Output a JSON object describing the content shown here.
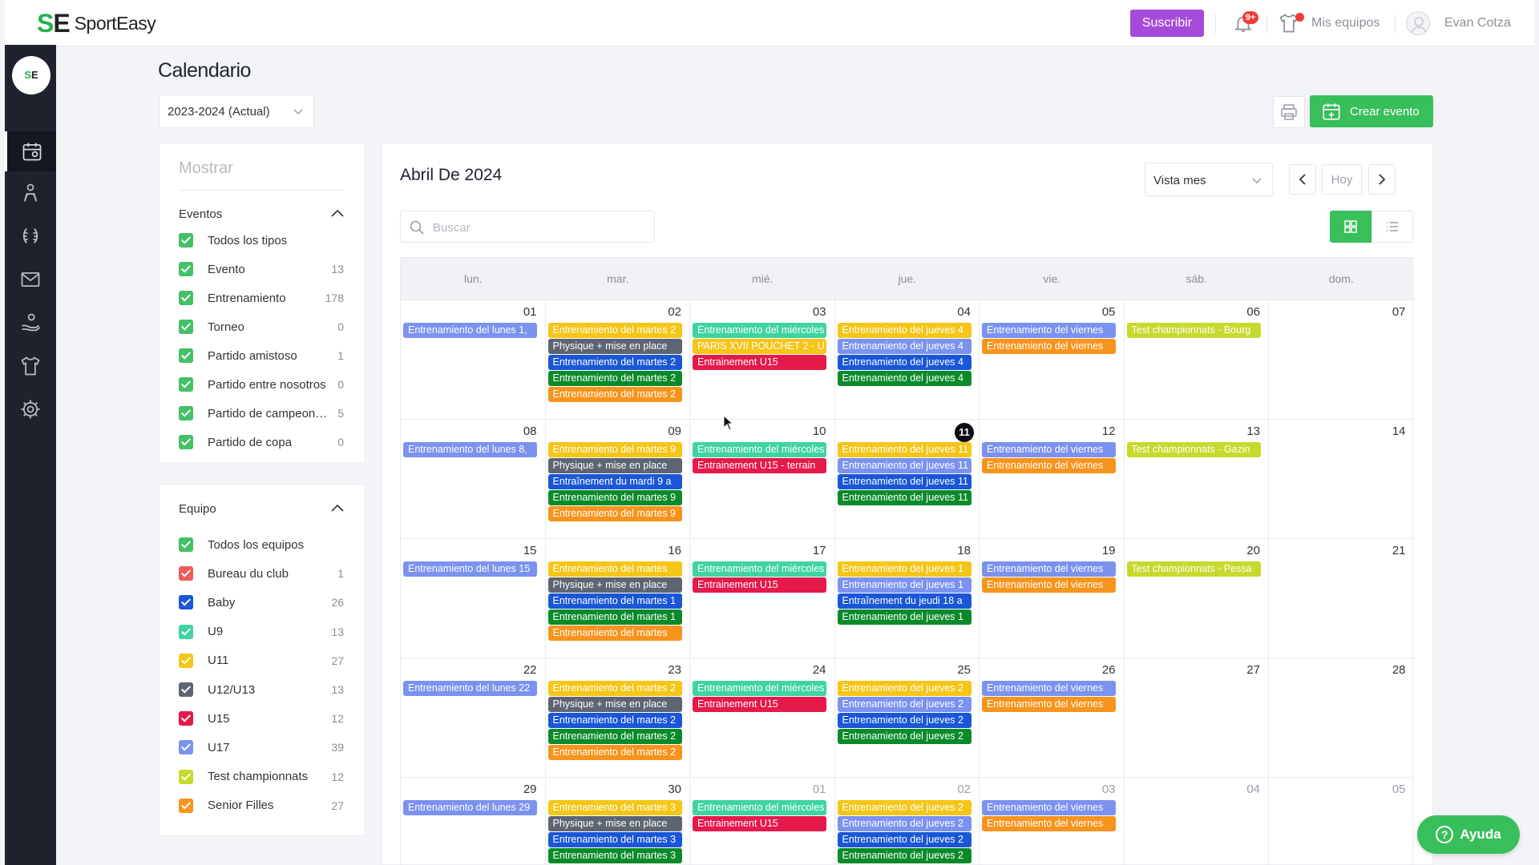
{
  "app": {
    "logo_mark": "SE",
    "name": "SportEasy"
  },
  "topbar": {
    "subscribe": "Suscribir",
    "notif_badge": "9+",
    "my_teams": "Mis equipos",
    "user_name": "Evan Cotza",
    "icons": [
      "bell-icon",
      "shirt-icon",
      "user-avatar-icon"
    ]
  },
  "sidebar": {
    "club_logo": "SE",
    "items": [
      {
        "name": "calendar",
        "icon": "calendar-icon",
        "active": true
      },
      {
        "name": "members",
        "icon": "people-icon",
        "active": false
      },
      {
        "name": "stats",
        "icon": "laurel-icon",
        "active": false
      },
      {
        "name": "messages",
        "icon": "mail-icon",
        "active": false
      },
      {
        "name": "payments",
        "icon": "hand-coin-icon",
        "active": false
      },
      {
        "name": "teams",
        "icon": "shirt-icon",
        "active": false
      },
      {
        "name": "settings",
        "icon": "gear-icon",
        "active": false
      }
    ]
  },
  "header": {
    "title": "Calendario",
    "season": "2023-2024 (Actual)",
    "create_event": "Crear evento"
  },
  "filters": {
    "show_label": "Mostrar",
    "events_title": "Eventos",
    "events": [
      {
        "label": "Todos los tipos",
        "count": "",
        "color": "#44c067"
      },
      {
        "label": "Evento",
        "count": "13",
        "color": "#44c067"
      },
      {
        "label": "Entrenamiento",
        "count": "178",
        "color": "#44c067"
      },
      {
        "label": "Torneo",
        "count": "0",
        "color": "#44c067"
      },
      {
        "label": "Partido amistoso",
        "count": "1",
        "color": "#44c067"
      },
      {
        "label": "Partido entre nosotros",
        "count": "0",
        "color": "#44c067"
      },
      {
        "label": "Partido de campeona...",
        "count": "5",
        "color": "#44c067"
      },
      {
        "label": "Partido de copa",
        "count": "0",
        "color": "#44c067"
      }
    ],
    "team_title": "Equipo",
    "teams": [
      {
        "label": "Todos los equipos",
        "count": "",
        "color": "#44c067"
      },
      {
        "label": "Bureau du club",
        "count": "1",
        "color": "#ef5a5a"
      },
      {
        "label": "Baby",
        "count": "26",
        "color": "#1a56d6"
      },
      {
        "label": "U9",
        "count": "13",
        "color": "#3fd4a0"
      },
      {
        "label": "U11",
        "count": "27",
        "color": "#f5c518"
      },
      {
        "label": "U12/U13",
        "count": "13",
        "color": "#5e6572"
      },
      {
        "label": "U15",
        "count": "12",
        "color": "#e5194a"
      },
      {
        "label": "U17",
        "count": "39",
        "color": "#7b92ef"
      },
      {
        "label": "Test championnats",
        "count": "12",
        "color": "#c7d92c"
      },
      {
        "label": "Senior Filles",
        "count": "27",
        "color": "#f7941d"
      }
    ]
  },
  "calendar": {
    "month_title": "Abril De 2024",
    "view": "Vista mes",
    "today_btn": "Hoy",
    "search_placeholder": "Buscar",
    "weekdays": [
      "lun.",
      "mar.",
      "mié.",
      "jue.",
      "vie.",
      "sáb.",
      "dom."
    ],
    "colors": {
      "periwinkle": "#7b92ef",
      "yellow": "#f5c518",
      "gray": "#5e6572",
      "blue": "#1a56d6",
      "green": "#0b8a2a",
      "orange": "#f7941d",
      "teal": "#3fd4a0",
      "red": "#e5194a",
      "lime": "#c7d92c"
    },
    "weeks": [
      [
        {
          "day": "01",
          "events": [
            {
              "label": "Entrenamiento del lunes 1,",
              "color": "periwinkle"
            }
          ]
        },
        {
          "day": "02",
          "events": [
            {
              "label": "Entrenamiento del martes 2",
              "color": "yellow"
            },
            {
              "label": "Physique + mise en place",
              "color": "gray"
            },
            {
              "label": "Entrenamiento del martes 2",
              "color": "blue"
            },
            {
              "label": "Entrenamiento del martes 2",
              "color": "green"
            },
            {
              "label": "Entrenamiento del martes 2",
              "color": "orange"
            }
          ]
        },
        {
          "day": "03",
          "events": [
            {
              "label": "Entrenamiento del miércoles",
              "color": "teal"
            },
            {
              "label": "PARIS XVII POUCHET 2 - U",
              "color": "yellow"
            },
            {
              "label": "Entrainement U15",
              "color": "red"
            }
          ]
        },
        {
          "day": "04",
          "events": [
            {
              "label": "Entrenamiento del jueves 4",
              "color": "yellow"
            },
            {
              "label": "Entrenamiento del jueves 4",
              "color": "periwinkle"
            },
            {
              "label": "Entrenamiento del jueves 4",
              "color": "blue"
            },
            {
              "label": "Entrenamiento del jueves 4",
              "color": "green"
            }
          ]
        },
        {
          "day": "05",
          "events": [
            {
              "label": "Entrenamiento del viernes",
              "color": "periwinkle"
            },
            {
              "label": "Entrenamiento del viernes",
              "color": "orange"
            }
          ]
        },
        {
          "day": "06",
          "events": [
            {
              "label": "Test championnats - Bourg",
              "color": "lime"
            }
          ]
        },
        {
          "day": "07",
          "events": []
        }
      ],
      [
        {
          "day": "08",
          "events": [
            {
              "label": "Entrenamiento del lunes 8,",
              "color": "periwinkle"
            }
          ]
        },
        {
          "day": "09",
          "events": [
            {
              "label": "Entrenamiento del martes 9",
              "color": "yellow"
            },
            {
              "label": "Physique + mise en place",
              "color": "gray"
            },
            {
              "label": "Entraînement du mardi 9 a",
              "color": "blue"
            },
            {
              "label": "Entrenamiento del martes 9",
              "color": "green"
            },
            {
              "label": "Entrenamiento del martes 9",
              "color": "orange"
            }
          ]
        },
        {
          "day": "10",
          "events": [
            {
              "label": "Entrenamiento del miércoles",
              "color": "teal"
            },
            {
              "label": "Entrainement U15 - terrain",
              "color": "red"
            }
          ]
        },
        {
          "day": "11",
          "today": true,
          "events": [
            {
              "label": "Entrenamiento del jueves 11",
              "color": "yellow"
            },
            {
              "label": "Entrenamiento del jueves 11",
              "color": "periwinkle"
            },
            {
              "label": "Entrenamiento del jueves 11",
              "color": "blue"
            },
            {
              "label": "Entrenamiento del jueves 11",
              "color": "green"
            }
          ]
        },
        {
          "day": "12",
          "events": [
            {
              "label": "Entrenamiento del viernes",
              "color": "periwinkle"
            },
            {
              "label": "Entrenamiento del viernes",
              "color": "orange"
            }
          ]
        },
        {
          "day": "13",
          "events": [
            {
              "label": "Test championnats - Gazin",
              "color": "lime"
            }
          ]
        },
        {
          "day": "14",
          "events": []
        }
      ],
      [
        {
          "day": "15",
          "events": [
            {
              "label": "Entrenamiento del lunes 15",
              "color": "periwinkle"
            }
          ]
        },
        {
          "day": "16",
          "events": [
            {
              "label": "Entrenamiento del martes",
              "color": "yellow"
            },
            {
              "label": "Physique + mise en place",
              "color": "gray"
            },
            {
              "label": "Entrenamiento del martes 1",
              "color": "blue"
            },
            {
              "label": "Entrenamiento del martes 1",
              "color": "green"
            },
            {
              "label": "Entrenamiento del martes",
              "color": "orange"
            }
          ]
        },
        {
          "day": "17",
          "events": [
            {
              "label": "Entrenamiento del miércoles",
              "color": "teal"
            },
            {
              "label": "Entrainement U15",
              "color": "red"
            }
          ]
        },
        {
          "day": "18",
          "events": [
            {
              "label": "Entrenamiento del jueves 1",
              "color": "yellow"
            },
            {
              "label": "Entrenamiento del jueves 1",
              "color": "periwinkle"
            },
            {
              "label": "Entraînement du jeudi 18 a",
              "color": "blue"
            },
            {
              "label": "Entrenamiento del jueves 1",
              "color": "green"
            }
          ]
        },
        {
          "day": "19",
          "events": [
            {
              "label": "Entrenamiento del viernes",
              "color": "periwinkle"
            },
            {
              "label": "Entrenamiento del viernes",
              "color": "orange"
            }
          ]
        },
        {
          "day": "20",
          "events": [
            {
              "label": "Test championnats - Pessa",
              "color": "lime"
            }
          ]
        },
        {
          "day": "21",
          "events": []
        }
      ],
      [
        {
          "day": "22",
          "events": [
            {
              "label": "Entrenamiento del lunes 22",
              "color": "periwinkle"
            }
          ]
        },
        {
          "day": "23",
          "events": [
            {
              "label": "Entrenamiento del martes 2",
              "color": "yellow"
            },
            {
              "label": "Physique + mise en place",
              "color": "gray"
            },
            {
              "label": "Entrenamiento del martes 2",
              "color": "blue"
            },
            {
              "label": "Entrenamiento del martes 2",
              "color": "green"
            },
            {
              "label": "Entrenamiento del martes 2",
              "color": "orange"
            }
          ]
        },
        {
          "day": "24",
          "events": [
            {
              "label": "Entrenamiento del miércoles",
              "color": "teal"
            },
            {
              "label": "Entrainement U15",
              "color": "red"
            }
          ]
        },
        {
          "day": "25",
          "events": [
            {
              "label": "Entrenamiento del jueves 2",
              "color": "yellow"
            },
            {
              "label": "Entrenamiento del jueves 2",
              "color": "periwinkle"
            },
            {
              "label": "Entrenamiento del jueves 2",
              "color": "blue"
            },
            {
              "label": "Entrenamiento del jueves 2",
              "color": "green"
            }
          ]
        },
        {
          "day": "26",
          "events": [
            {
              "label": "Entrenamiento del viernes",
              "color": "periwinkle"
            },
            {
              "label": "Entrenamiento del viernes",
              "color": "orange"
            }
          ]
        },
        {
          "day": "27",
          "events": []
        },
        {
          "day": "28",
          "events": []
        }
      ],
      [
        {
          "day": "29",
          "events": [
            {
              "label": "Entrenamiento del lunes 29",
              "color": "periwinkle"
            }
          ]
        },
        {
          "day": "30",
          "events": [
            {
              "label": "Entrenamiento del martes 3",
              "color": "yellow"
            },
            {
              "label": "Physique + mise en place",
              "color": "gray"
            },
            {
              "label": "Entrenamiento del martes 3",
              "color": "blue"
            },
            {
              "label": "Entrenamiento del martes 3",
              "color": "green"
            }
          ]
        },
        {
          "day": "01",
          "other": true,
          "events": [
            {
              "label": "Entrenamiento del miércoles",
              "color": "teal"
            },
            {
              "label": "Entrainement U15",
              "color": "red"
            }
          ]
        },
        {
          "day": "02",
          "other": true,
          "events": [
            {
              "label": "Entrenamiento del jueves 2",
              "color": "yellow"
            },
            {
              "label": "Entrenamiento del jueves 2",
              "color": "periwinkle"
            },
            {
              "label": "Entrenamiento del jueves 2",
              "color": "blue"
            },
            {
              "label": "Entrenamiento del jueves 2",
              "color": "green"
            }
          ]
        },
        {
          "day": "03",
          "other": true,
          "events": [
            {
              "label": "Entrenamiento del viernes",
              "color": "periwinkle"
            },
            {
              "label": "Entrenamiento del viernes",
              "color": "orange"
            }
          ]
        },
        {
          "day": "04",
          "other": true,
          "events": []
        },
        {
          "day": "05",
          "other": true,
          "events": []
        }
      ]
    ]
  },
  "help": {
    "label": "Ayuda"
  }
}
